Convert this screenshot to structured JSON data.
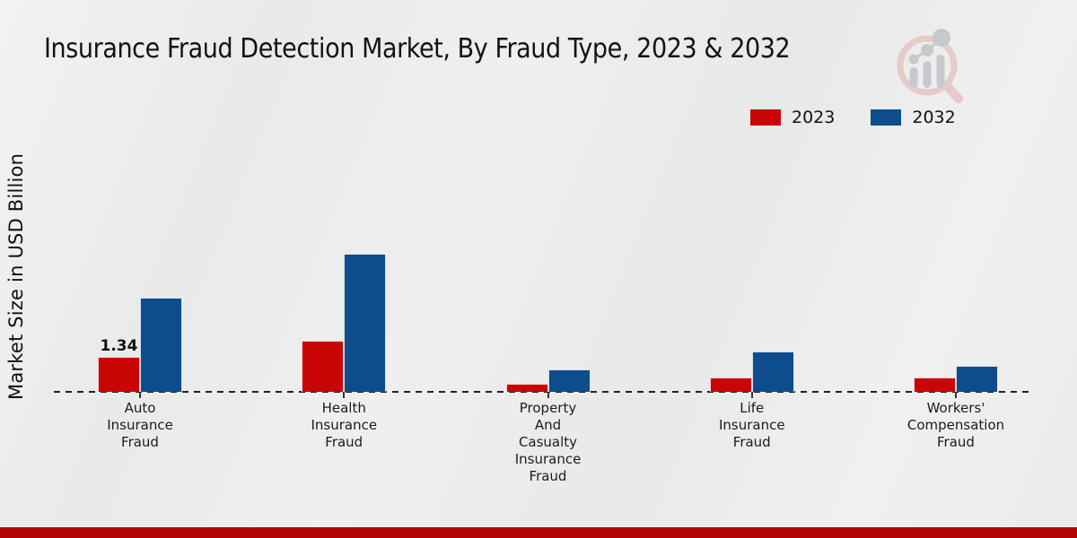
{
  "header": {
    "title": "Insurance Fraud Detection Market, By Fraud Type, 2023 & 2032"
  },
  "legend": {
    "items": [
      {
        "label": "2023",
        "color": "#c90505"
      },
      {
        "label": "2032",
        "color": "#0e4d8d"
      }
    ]
  },
  "chart_data": {
    "type": "bar",
    "title": "Insurance Fraud Detection Market, By Fraud Type, 2023 & 2032",
    "ylabel": "Market Size in USD Billion",
    "categories": [
      "Auto\nInsurance\nFraud",
      "Health\nInsurance\nFraud",
      "Property\nAnd\nCasualty\nInsurance\nFraud",
      "Life\nInsurance\nFraud",
      "Workers'\nCompensation\nFraud"
    ],
    "series": [
      {
        "name": "2023",
        "color": "#c90505",
        "values": [
          1.34,
          1.96,
          0.31,
          0.55,
          0.55
        ]
      },
      {
        "name": "2032",
        "color": "#0e4d8d",
        "values": [
          3.61,
          5.29,
          0.86,
          1.55,
          1.0
        ]
      }
    ],
    "bar_value_labels": [
      {
        "series_index": 0,
        "category_index": 0,
        "text": "1.34"
      }
    ],
    "baseline_style": "dashed",
    "legend_position": "top-right",
    "grid": false
  },
  "page": {
    "bottom_band_color": "#b20404"
  }
}
